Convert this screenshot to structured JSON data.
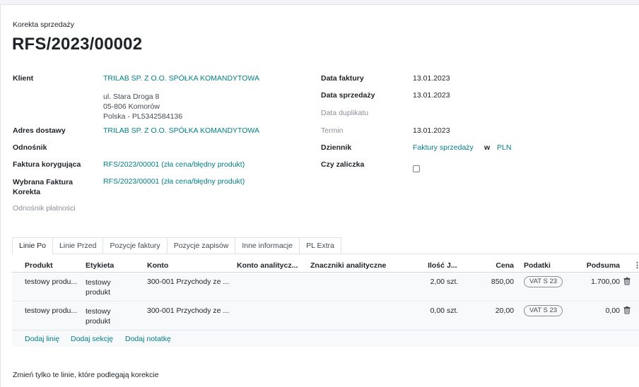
{
  "header": {
    "subtitle": "Korekta sprzedaży",
    "title": "RFS/2023/00002"
  },
  "left_fields": {
    "client_label": "Klient",
    "client_name": "TRILAB SP. Z O.O. SPÓŁKA KOMANDYTOWA",
    "client_address": [
      "ul. Stara Droga 8",
      "05-806 Komorów",
      "Polska - PL5342584136"
    ],
    "delivery_label": "Adres dostawy",
    "delivery_value": "TRILAB SP. Z O.O. SPÓŁKA KOMANDYTOWA",
    "reference_label": "Odnośnik",
    "corrective_label": "Faktura korygująca",
    "corrective_value": "RFS/2023/00001 (zła cena/błędny produkt)",
    "selected_label_line1": "Wybrana Faktura",
    "selected_label_line2": "Korekta",
    "selected_value": "RFS/2023/00001 (zła cena/błędny produkt)",
    "payment_ref_label": "Odnośnik płatności"
  },
  "right_fields": {
    "invoice_date_label": "Data faktury",
    "invoice_date": "13.01.2023",
    "sale_date_label": "Data sprzedaży",
    "sale_date": "13.01.2023",
    "duplicate_date_label": "Data duplikatu",
    "due_label": "Termin",
    "due_date": "13.01.2023",
    "journal_label": "Dziennik",
    "journal_value": "Faktury sprzedaży",
    "journal_in": "w",
    "journal_currency": "PLN",
    "advance_label": "Czy zaliczka"
  },
  "tabs": [
    "Linie Po",
    "Linie Przed",
    "Pozycje faktury",
    "Pozycje zapisów",
    "Inne informacje",
    "PL Extra"
  ],
  "table": {
    "headers": {
      "product": "Produkt",
      "label": "Etykieta",
      "account": "Konto",
      "analytic_account": "Konto analitycz...",
      "analytic_tags": "Znaczniki analityczne",
      "qty": "Ilość",
      "uom": "J...",
      "price": "Cena",
      "taxes": "Podatki",
      "subtotal": "Podsuma"
    },
    "rows": [
      {
        "product": "testowy produ...",
        "label": "testowy produkt",
        "account": "300-001 Przychody ze ...",
        "qty": "2,00",
        "uom": "szt.",
        "price": "850,00",
        "tax": "VAT S 23",
        "subtotal": "1.700,00"
      },
      {
        "product": "testowy produ...",
        "label": "testowy produkt",
        "account": "300-001 Przychody ze ...",
        "qty": "0,00",
        "uom": "szt.",
        "price": "20,00",
        "tax": "VAT S 23",
        "subtotal": "0,00"
      }
    ],
    "add_line": "Dodaj linię",
    "add_section": "Dodaj sekcję",
    "add_note": "Dodaj notatkę"
  },
  "footer_note": "Zmień tylko te linie, które podlegają korekcie",
  "icons": {
    "delete": "trash-icon",
    "columns": "kebab-icon",
    "checkbox": "checkbox"
  },
  "colors": {
    "link": "#017e84",
    "text": "#212529",
    "muted": "#8a8f98"
  }
}
